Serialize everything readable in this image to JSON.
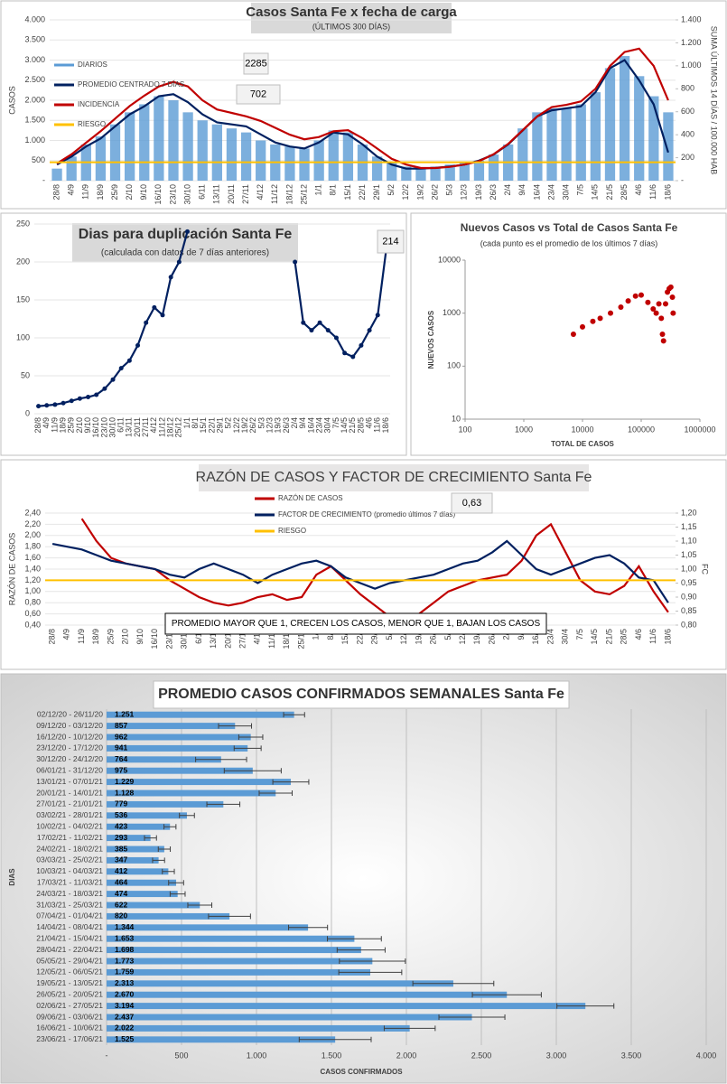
{
  "chart_data": [
    {
      "type": "combo",
      "title": "Casos Santa Fe x fecha de carga",
      "subtitle": "(ÚLTIMOS 300 DÍAS)",
      "y_label": "CASOS",
      "y2_label": "SUMA ÚLTIMOS 14 DÍAS / 100.000 HAB",
      "categories": [
        "28/8",
        "4/9",
        "11/9",
        "18/9",
        "25/9",
        "2/10",
        "9/10",
        "16/10",
        "23/10",
        "30/10",
        "6/11",
        "13/11",
        "20/11",
        "27/11",
        "4/12",
        "11/12",
        "18/12",
        "25/12",
        "1/1",
        "8/1",
        "15/1",
        "22/1",
        "29/1",
        "5/2",
        "12/2",
        "19/2",
        "26/2",
        "5/3",
        "12/3",
        "19/3",
        "26/3",
        "2/4",
        "9/4",
        "16/4",
        "23/4",
        "30/4",
        "7/5",
        "14/5",
        "21/5",
        "28/5",
        "4/6",
        "11/6",
        "18/6"
      ],
      "series": [
        {
          "name": "DIARIOS",
          "type": "bar",
          "color": "#5b9bd5",
          "values": [
            300,
            600,
            900,
            1100,
            1400,
            1700,
            1900,
            2100,
            2000,
            1700,
            1500,
            1400,
            1300,
            1200,
            1000,
            900,
            850,
            800,
            1000,
            1250,
            1200,
            900,
            600,
            450,
            350,
            300,
            350,
            400,
            450,
            500,
            650,
            900,
            1300,
            1700,
            1800,
            1800,
            1900,
            2200,
            2800,
            3100,
            2600,
            2100,
            1700
          ]
        },
        {
          "name": "PROMEDIO CENTRADO 7 DÍAS",
          "type": "line",
          "color": "#002060",
          "values": [
            400,
            600,
            850,
            1050,
            1350,
            1650,
            1850,
            2100,
            2150,
            1950,
            1650,
            1450,
            1400,
            1350,
            1150,
            950,
            850,
            800,
            950,
            1200,
            1150,
            900,
            600,
            400,
            300,
            300,
            320,
            350,
            400,
            500,
            650,
            900,
            1250,
            1600,
            1750,
            1800,
            1850,
            2200,
            2800,
            3000,
            2500,
            1900,
            702
          ]
        },
        {
          "name": "INCIDENCIA",
          "type": "line",
          "axis": "y2",
          "color": "#c00000",
          "values": [
            150,
            230,
            330,
            430,
            540,
            650,
            740,
            820,
            860,
            820,
            700,
            620,
            590,
            560,
            520,
            460,
            400,
            360,
            380,
            430,
            440,
            370,
            280,
            190,
            140,
            110,
            110,
            120,
            140,
            170,
            230,
            320,
            440,
            560,
            640,
            660,
            690,
            800,
            1000,
            1120,
            1150,
            1000,
            700
          ]
        }
      ],
      "hlines": [
        {
          "name": "RIESGO",
          "axis": "y2",
          "color": "#ffc000",
          "value": 160
        }
      ],
      "annotations": [
        "2285",
        "702"
      ],
      "ylim": [
        0,
        4000
      ],
      "yticks": [
        {
          "value": 0,
          "label": "-"
        },
        500,
        {
          "value": 1000,
          "label": "1.000"
        },
        {
          "value": 1500,
          "label": "1.500"
        },
        {
          "value": 2000,
          "label": "2.000"
        },
        {
          "value": 2500,
          "label": "2.500"
        },
        {
          "value": 3000,
          "label": "3.000"
        },
        {
          "value": 3500,
          "label": "3.500"
        },
        {
          "value": 4000,
          "label": "4.000"
        }
      ],
      "y2lim": [
        0,
        1400
      ],
      "y2ticks": [
        {
          "value": 0,
          "label": "-"
        },
        200,
        400,
        600,
        800,
        {
          "value": 1000,
          "label": "1.000"
        },
        {
          "value": 1200,
          "label": "1.200"
        },
        {
          "value": 1400,
          "label": "1.400"
        }
      ],
      "grid": true
    },
    {
      "type": "line",
      "title": "Dias para duplicación Santa Fe",
      "subtitle": "(calculada con datos de 7 días anteriores)",
      "categories": [
        "28/8",
        "4/9",
        "11/9",
        "18/9",
        "25/9",
        "2/10",
        "9/10",
        "16/10",
        "23/10",
        "30/10",
        "6/11",
        "13/11",
        "20/11",
        "27/11",
        "4/12",
        "11/12",
        "18/12",
        "25/12",
        "1/1",
        "8/1",
        "15/1",
        "22/1",
        "29/1",
        "5/2",
        "12/2",
        "19/2",
        "26/2",
        "5/3",
        "12/3",
        "19/3",
        "26/3",
        "2/4",
        "9/4",
        "16/4",
        "23/4",
        "30/4",
        "7/5",
        "14/5",
        "21/5",
        "28/5",
        "4/6",
        "11/6",
        "18/6"
      ],
      "color": "#002060",
      "markers": true,
      "values": [
        10,
        11,
        12,
        14,
        17,
        20,
        22,
        25,
        33,
        45,
        60,
        70,
        90,
        120,
        140,
        130,
        180,
        200,
        240,
        null,
        null,
        null,
        null,
        null,
        null,
        null,
        null,
        null,
        null,
        null,
        null,
        200,
        120,
        110,
        120,
        110,
        100,
        80,
        75,
        90,
        110,
        130,
        214
      ],
      "annotations": [
        "214"
      ],
      "ylim": [
        0,
        250
      ],
      "yticks": [
        0,
        50,
        100,
        150,
        200,
        250
      ],
      "grid": true
    },
    {
      "type": "scatter",
      "title": "Nuevos Casos vs Total de Casos Santa Fe",
      "subtitle": "(cada punto es el promedio de los últimos 7 días)",
      "x_label": "TOTAL DE CASOS",
      "y_label": "NUEVOS CASOS",
      "color": "#c00000",
      "log_x": true,
      "log_y": true,
      "x": [
        7000,
        10000,
        15000,
        20000,
        30000,
        45000,
        60000,
        80000,
        100000,
        130000,
        160000,
        180000,
        200000,
        220000,
        230000,
        240000,
        260000,
        280000,
        300000,
        320000,
        340000,
        350000
      ],
      "values": [
        400,
        550,
        700,
        800,
        1000,
        1300,
        1700,
        2100,
        2200,
        1600,
        1200,
        1000,
        1500,
        800,
        400,
        300,
        1500,
        2500,
        2900,
        3100,
        2000,
        1000
      ],
      "xlim": [
        100,
        1000000
      ],
      "xticks": [
        100,
        1000,
        10000,
        100000,
        1000000
      ],
      "ylim": [
        10,
        10000
      ],
      "yticks": [
        10,
        100,
        1000,
        10000
      ]
    },
    {
      "type": "combo",
      "title": "RAZÓN DE CASOS Y FACTOR DE CRECIMIENTO Santa Fe",
      "y_label": "RAZÓN DE CASOS",
      "y2_label": "FC",
      "note": "PROMEDIO MAYOR QUE 1, CRECEN LOS CASOS, MENOR QUE 1, BAJAN LOS CASOS",
      "categories": [
        "28/8",
        "4/9",
        "11/9",
        "18/9",
        "25/9",
        "2/10",
        "9/10",
        "16/10",
        "23/10",
        "30/10",
        "6/11",
        "13/11",
        "20/11",
        "27/11",
        "4/12",
        "11/12",
        "18/12",
        "25/12",
        "1/1",
        "8/1",
        "15/1",
        "22/1",
        "29/1",
        "5/2",
        "12/2",
        "19/2",
        "26/2",
        "5/3",
        "12/3",
        "19/3",
        "26/3",
        "2/4",
        "9/4",
        "16/4",
        "23/4",
        "30/4",
        "7/5",
        "14/5",
        "21/5",
        "28/5",
        "4/6",
        "11/6",
        "18/6"
      ],
      "series": [
        {
          "name": "RAZÓN DE CASOS",
          "type": "line",
          "color": "#c00000",
          "values": [
            2.3,
            null,
            2.3,
            1.9,
            1.6,
            1.5,
            1.45,
            1.4,
            1.2,
            1.05,
            0.9,
            0.8,
            0.75,
            0.8,
            0.9,
            0.95,
            0.85,
            0.9,
            1.3,
            1.45,
            1.2,
            0.95,
            0.75,
            0.55,
            0.5,
            0.6,
            0.8,
            1.0,
            1.1,
            1.2,
            1.25,
            1.3,
            1.55,
            2.0,
            2.2,
            1.7,
            1.2,
            1.0,
            0.95,
            1.1,
            1.45,
            1.0,
            0.63
          ]
        },
        {
          "name": "FACTOR DE CRECIMIENTO (promedio últimos 7 días)",
          "type": "line",
          "axis": "y2",
          "color": "#002060",
          "values": [
            1.09,
            1.08,
            1.07,
            1.05,
            1.03,
            1.02,
            1.01,
            1.0,
            0.98,
            0.97,
            1.0,
            1.02,
            1.0,
            0.98,
            0.95,
            0.98,
            1.0,
            1.02,
            1.03,
            1.01,
            0.97,
            0.95,
            0.93,
            0.95,
            0.96,
            0.97,
            0.98,
            1.0,
            1.02,
            1.03,
            1.06,
            1.1,
            1.05,
            1.0,
            0.98,
            1.0,
            1.02,
            1.04,
            1.05,
            1.02,
            0.97,
            0.96,
            0.88
          ]
        }
      ],
      "hlines": [
        {
          "name": "RIESGO",
          "color": "#ffc000",
          "value": 1.2
        }
      ],
      "annotations": [
        "0,63"
      ],
      "ylim": [
        0.4,
        2.4
      ],
      "yticks": [
        {
          "value": 0.4,
          "label": "0,40"
        },
        {
          "value": 0.6,
          "label": "0,60"
        },
        {
          "value": 0.8,
          "label": "0,80"
        },
        {
          "value": 1.0,
          "label": "1,00"
        },
        {
          "value": 1.2,
          "label": "1,20"
        },
        {
          "value": 1.4,
          "label": "1,40"
        },
        {
          "value": 1.6,
          "label": "1,60"
        },
        {
          "value": 1.8,
          "label": "1,80"
        },
        {
          "value": 2.0,
          "label": "2,00"
        },
        {
          "value": 2.2,
          "label": "2,20"
        },
        {
          "value": 2.4,
          "label": "2,40"
        }
      ],
      "y2lim": [
        0.8,
        1.2
      ],
      "y2ticks": [
        {
          "value": 0.8,
          "label": "0,80"
        },
        {
          "value": 0.85,
          "label": "0,85"
        },
        {
          "value": 0.9,
          "label": "0,90"
        },
        {
          "value": 0.95,
          "label": "0,95"
        },
        {
          "value": 1.0,
          "label": "1,00"
        },
        {
          "value": 1.05,
          "label": "1,05"
        },
        {
          "value": 1.1,
          "label": "1,10"
        },
        {
          "value": 1.15,
          "label": "1,15"
        },
        {
          "value": 1.2,
          "label": "1,20"
        }
      ],
      "grid": true
    },
    {
      "type": "hbar",
      "title": "PROMEDIO CASOS CONFIRMADOS SEMANALES Santa Fe",
      "x_label": "CASOS CONFIRMADOS",
      "y_label": "DIAS",
      "color": "#5b9bd5",
      "categories": [
        "02/12/20 - 26/11/20",
        "09/12/20 - 03/12/20",
        "16/12/20 - 10/12/20",
        "23/12/20 - 17/12/20",
        "30/12/20 - 24/12/20",
        "06/01/21 - 31/12/20",
        "13/01/21 - 07/01/21",
        "20/01/21 - 14/01/21",
        "27/01/21 - 21/01/21",
        "03/02/21 - 28/01/21",
        "10/02/21 - 04/02/21",
        "17/02/21 - 11/02/21",
        "24/02/21 - 18/02/21",
        "03/03/21 - 25/02/21",
        "10/03/21 - 04/03/21",
        "17/03/21 - 11/03/21",
        "24/03/21 - 18/03/21",
        "31/03/21 - 25/03/21",
        "07/04/21 - 01/04/21",
        "14/04/21 - 08/04/21",
        "21/04/21 - 15/04/21",
        "28/04/21 - 22/04/21",
        "05/05/21 - 29/04/21",
        "12/05/21 - 06/05/21",
        "19/05/21 - 13/05/21",
        "26/05/21 - 20/05/21",
        "02/06/21 - 27/05/21",
        "09/06/21 - 03/06/21",
        "16/06/21 - 10/06/21",
        "23/06/21 - 17/06/21"
      ],
      "values": [
        1251,
        857,
        962,
        941,
        764,
        975,
        1229,
        1128,
        779,
        536,
        423,
        293,
        385,
        347,
        412,
        464,
        474,
        622,
        820,
        1344,
        1653,
        1698,
        1773,
        1759,
        2313,
        2670,
        3194,
        2437,
        2022,
        1525
      ],
      "value_labels": [
        "1.251",
        "857",
        "962",
        "941",
        "764",
        "975",
        "1.229",
        "1.128",
        "779",
        "536",
        "423",
        "293",
        "385",
        "347",
        "412",
        "464",
        "474",
        "622",
        "820",
        "1.344",
        "1.653",
        "1.698",
        "1.773",
        "1.759",
        "2.313",
        "2.670",
        "3.194",
        "2.437",
        "2.022",
        "1.525"
      ],
      "errors": [
        70,
        110,
        80,
        90,
        170,
        190,
        120,
        110,
        110,
        50,
        40,
        40,
        40,
        40,
        40,
        50,
        50,
        80,
        140,
        130,
        180,
        160,
        220,
        210,
        270,
        230,
        190,
        220,
        170,
        240
      ],
      "xlim": [
        0,
        4000
      ],
      "xticks": [
        {
          "value": 0,
          "label": "-"
        },
        500,
        {
          "value": 1000,
          "label": "1.000"
        },
        {
          "value": 1500,
          "label": "1.500"
        },
        {
          "value": 2000,
          "label": "2.000"
        },
        {
          "value": 2500,
          "label": "2.500"
        },
        {
          "value": 3000,
          "label": "3.000"
        },
        {
          "value": 3500,
          "label": "3.500"
        },
        {
          "value": 4000,
          "label": "4.000"
        }
      ],
      "grid": true
    }
  ]
}
